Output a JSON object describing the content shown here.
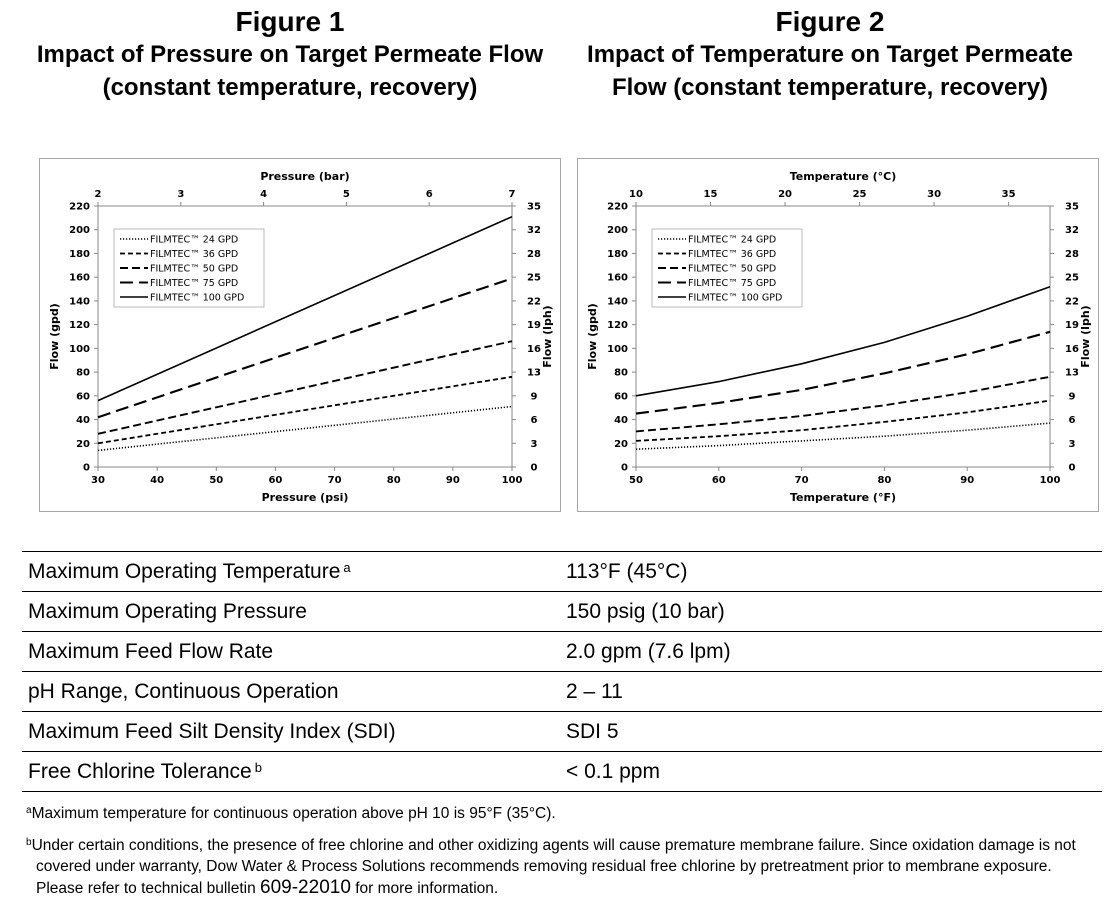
{
  "figure1": {
    "number": "Figure 1",
    "title_line1": "Impact of Pressure on Target Permeate Flow",
    "title_line2": "(constant temperature, recovery)"
  },
  "figure2": {
    "number": "Figure 2",
    "title_line1": "Impact of Temperature on Target Permeate",
    "title_line2": "Flow (constant temperature, recovery)"
  },
  "chart_data": [
    {
      "type": "line",
      "x_axis_bottom": {
        "label": "Pressure (psi)",
        "range": [
          30,
          100
        ],
        "ticks": [
          "30",
          "40",
          "50",
          "60",
          "70",
          "80",
          "90",
          "100"
        ]
      },
      "x_axis_top": {
        "label": "Pressure (bar)",
        "ticks": [
          "2",
          "3",
          "4",
          "5",
          "6",
          "7"
        ]
      },
      "y_axis_left": {
        "label": "Flow (gpd)",
        "range": [
          0,
          220
        ],
        "ticks": [
          "0",
          "20",
          "40",
          "60",
          "80",
          "100",
          "120",
          "140",
          "160",
          "180",
          "200",
          "220"
        ]
      },
      "y_axis_right": {
        "label": "Flow (lph)",
        "ticks": [
          "0",
          "3",
          "6",
          "9",
          "13",
          "16",
          "19",
          "22",
          "25",
          "28",
          "32",
          "35"
        ]
      },
      "legend": "top-left",
      "grid": false,
      "series": [
        {
          "name": "FILMTEC™ 24 GPD",
          "style": "dotted",
          "x": [
            30,
            100
          ],
          "y": [
            14,
            51
          ]
        },
        {
          "name": "FILMTEC™ 36 GPD",
          "style": "dashed",
          "x": [
            30,
            100
          ],
          "y": [
            20,
            76
          ]
        },
        {
          "name": "FILMTEC™ 50 GPD",
          "style": "dashed-medium",
          "x": [
            30,
            100
          ],
          "y": [
            28,
            106
          ]
        },
        {
          "name": "FILMTEC™ 75 GPD",
          "style": "dashed-long",
          "x": [
            30,
            100
          ],
          "y": [
            42,
            159
          ]
        },
        {
          "name": "FILMTEC™ 100 GPD",
          "style": "solid",
          "x": [
            30,
            100
          ],
          "y": [
            56,
            211
          ]
        }
      ]
    },
    {
      "type": "line",
      "x_axis_bottom": {
        "label": "Temperature (°F)",
        "range": [
          50,
          100
        ],
        "ticks": [
          "50",
          "60",
          "70",
          "80",
          "90",
          "100"
        ]
      },
      "x_axis_top": {
        "label": "Temperature (°C)",
        "ticks": [
          "10",
          "15",
          "20",
          "25",
          "30",
          "35"
        ]
      },
      "y_axis_left": {
        "label": "Flow (gpd)",
        "range": [
          0,
          220
        ],
        "ticks": [
          "0",
          "20",
          "40",
          "60",
          "80",
          "100",
          "120",
          "140",
          "160",
          "180",
          "200",
          "220"
        ]
      },
      "y_axis_right": {
        "label": "Flow (lph)",
        "ticks": [
          "0",
          "3",
          "6",
          "9",
          "13",
          "16",
          "19",
          "22",
          "25",
          "28",
          "32",
          "35"
        ]
      },
      "legend": "top-left",
      "grid": false,
      "series": [
        {
          "name": "FILMTEC™ 24 GPD",
          "style": "dotted",
          "x": [
            50,
            60,
            70,
            80,
            90,
            100
          ],
          "y": [
            15,
            18,
            22,
            26,
            31,
            37
          ]
        },
        {
          "name": "FILMTEC™ 36 GPD",
          "style": "dashed",
          "x": [
            50,
            60,
            70,
            80,
            90,
            100
          ],
          "y": [
            22,
            26,
            31,
            38,
            46,
            56
          ]
        },
        {
          "name": "FILMTEC™ 50 GPD",
          "style": "dashed-medium",
          "x": [
            50,
            60,
            70,
            80,
            90,
            100
          ],
          "y": [
            30,
            36,
            43,
            52,
            63,
            76
          ]
        },
        {
          "name": "FILMTEC™ 75 GPD",
          "style": "dashed-long",
          "x": [
            50,
            60,
            70,
            80,
            90,
            100
          ],
          "y": [
            45,
            54,
            65,
            79,
            95,
            114
          ]
        },
        {
          "name": "FILMTEC™ 100 GPD",
          "style": "solid",
          "x": [
            50,
            60,
            70,
            80,
            90,
            100
          ],
          "y": [
            60,
            72,
            87,
            105,
            127,
            152
          ]
        }
      ]
    }
  ],
  "specs": [
    {
      "label": "Maximum Operating Temperature",
      "note": "a",
      "value": "113°F (45°C)"
    },
    {
      "label": "Maximum Operating Pressure",
      "note": "",
      "value": "150 psig (10 bar)"
    },
    {
      "label": "Maximum Feed Flow Rate",
      "note": "",
      "value": "2.0 gpm (7.6 lpm)"
    },
    {
      "label": "pH Range, Continuous Operation",
      "note": "",
      "value": "2 – 11"
    },
    {
      "label": "Maximum Feed Silt Density Index (SDI)",
      "note": "",
      "value": "SDI 5"
    },
    {
      "label": "Free Chlorine Tolerance",
      "note": "b",
      "value": "< 0.1 ppm"
    }
  ],
  "footnotes": {
    "a_mark": "a",
    "a_text": "Maximum temperature for continuous operation above pH 10 is 95°F (35°C).",
    "b_mark": "b",
    "b_text": "Under certain conditions, the presence of free chlorine and other oxidizing agents will cause premature membrane failure. Since oxidation damage is not covered under warranty, Dow Water & Process Solutions recommends removing residual free chlorine by pretreatment prior to membrane exposure. Please refer to technical bulletin",
    "b_bulletin": "609-22010",
    "b_end": "for more information."
  }
}
